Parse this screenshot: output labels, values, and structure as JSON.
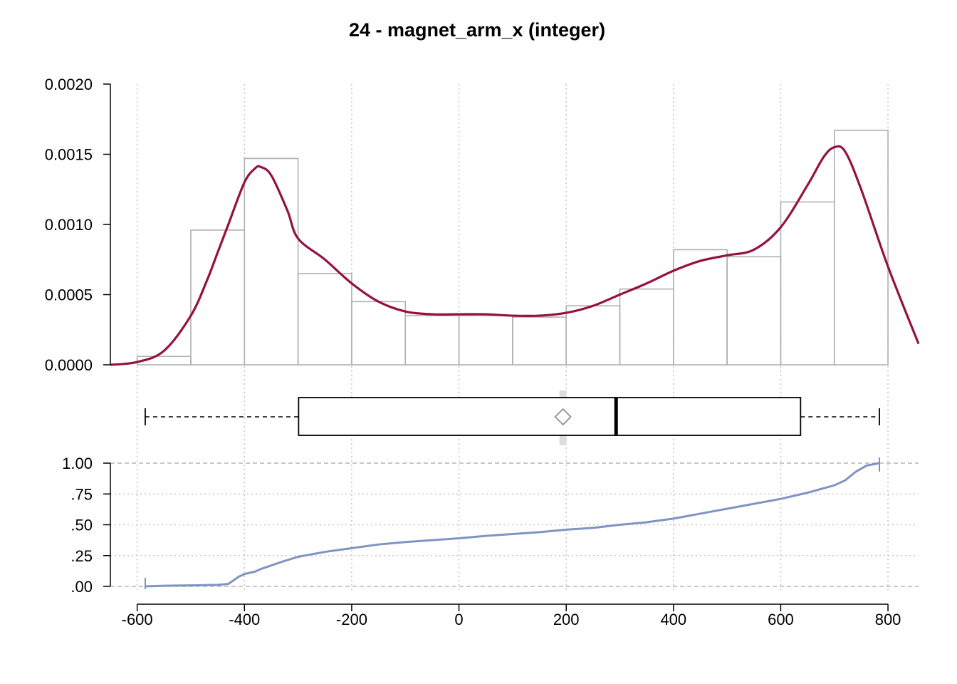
{
  "chart_data": {
    "type": "histogram-density-boxplot-ecdf",
    "title": "24 - magnet_arm_x (integer)",
    "x_axis": {
      "range": [
        -650,
        857
      ],
      "ticks": [
        -600,
        -400,
        -200,
        0,
        200,
        400,
        600,
        800
      ],
      "tick_labels": [
        "-600",
        "-400",
        "-200",
        "0",
        "200",
        "400",
        "600",
        "800"
      ],
      "grid": "dotted"
    },
    "histogram": {
      "ylim": [
        0,
        0.002
      ],
      "y_ticks": [
        0,
        0.0005,
        0.001,
        0.0015,
        0.002
      ],
      "y_tick_labels": [
        "0.0000",
        "0.0005",
        "0.0010",
        "0.0015",
        "0.0020"
      ],
      "bins": [
        {
          "start": -600,
          "end": -500,
          "density": 6e-05
        },
        {
          "start": -500,
          "end": -400,
          "density": 0.00096
        },
        {
          "start": -400,
          "end": -300,
          "density": 0.00147
        },
        {
          "start": -300,
          "end": -200,
          "density": 0.00065
        },
        {
          "start": -200,
          "end": -100,
          "density": 0.00045
        },
        {
          "start": -100,
          "end": 0,
          "density": 0.00035
        },
        {
          "start": 0,
          "end": 100,
          "density": 0.00035
        },
        {
          "start": 100,
          "end": 200,
          "density": 0.00034
        },
        {
          "start": 200,
          "end": 300,
          "density": 0.00042
        },
        {
          "start": 300,
          "end": 400,
          "density": 0.00054
        },
        {
          "start": 400,
          "end": 500,
          "density": 0.00082
        },
        {
          "start": 500,
          "end": 600,
          "density": 0.00077
        },
        {
          "start": 600,
          "end": 700,
          "density": 0.00116
        },
        {
          "start": 700,
          "end": 800,
          "density": 0.00167
        }
      ],
      "bar_color": "#b0b0b0",
      "density_curve": {
        "color": "#951141",
        "x": [
          -650,
          -600,
          -550,
          -500,
          -470,
          -450,
          -430,
          -400,
          -380,
          -370,
          -350,
          -320,
          -300,
          -250,
          -200,
          -150,
          -100,
          -50,
          0,
          50,
          100,
          150,
          200,
          250,
          300,
          350,
          400,
          450,
          500,
          550,
          600,
          650,
          680,
          700,
          720,
          750,
          800,
          857
        ],
        "y": [
          0,
          2e-05,
          0.0001,
          0.00035,
          0.0006,
          0.0008,
          0.001,
          0.0013,
          0.0014,
          0.00141,
          0.00135,
          0.0011,
          0.0009,
          0.00075,
          0.00058,
          0.00045,
          0.00038,
          0.00036,
          0.00036,
          0.00036,
          0.00035,
          0.00035,
          0.00037,
          0.00042,
          0.0005,
          0.00058,
          0.00067,
          0.00074,
          0.00078,
          0.00082,
          0.00098,
          0.00128,
          0.00148,
          0.00155,
          0.00152,
          0.00125,
          0.0007,
          0.00015
        ]
      }
    },
    "boxplot": {
      "whisker_low": -585,
      "q1": -299,
      "median": 293,
      "q3": 637,
      "whisker_high": 784,
      "mean": 194,
      "mean_marker": "diamond"
    },
    "ecdf": {
      "ylim": [
        0,
        1
      ],
      "y_ticks": [
        0,
        0.25,
        0.5,
        0.75,
        1
      ],
      "y_tick_labels": [
        ".00",
        ".25",
        ".50",
        ".75",
        "1.00"
      ],
      "color": "#7f93c4",
      "x": [
        -585,
        -550,
        -500,
        -450,
        -430,
        -420,
        -410,
        -400,
        -380,
        -370,
        -350,
        -330,
        -300,
        -250,
        -200,
        -150,
        -100,
        -50,
        0,
        50,
        100,
        150,
        200,
        250,
        300,
        350,
        400,
        450,
        500,
        550,
        600,
        650,
        700,
        720,
        740,
        760,
        784
      ],
      "y": [
        0,
        0.005,
        0.008,
        0.012,
        0.02,
        0.05,
        0.08,
        0.1,
        0.12,
        0.14,
        0.17,
        0.2,
        0.24,
        0.28,
        0.31,
        0.34,
        0.36,
        0.375,
        0.39,
        0.41,
        0.425,
        0.44,
        0.46,
        0.475,
        0.5,
        0.52,
        0.55,
        0.59,
        0.63,
        0.67,
        0.71,
        0.76,
        0.82,
        0.86,
        0.93,
        0.98,
        1.0
      ]
    }
  }
}
